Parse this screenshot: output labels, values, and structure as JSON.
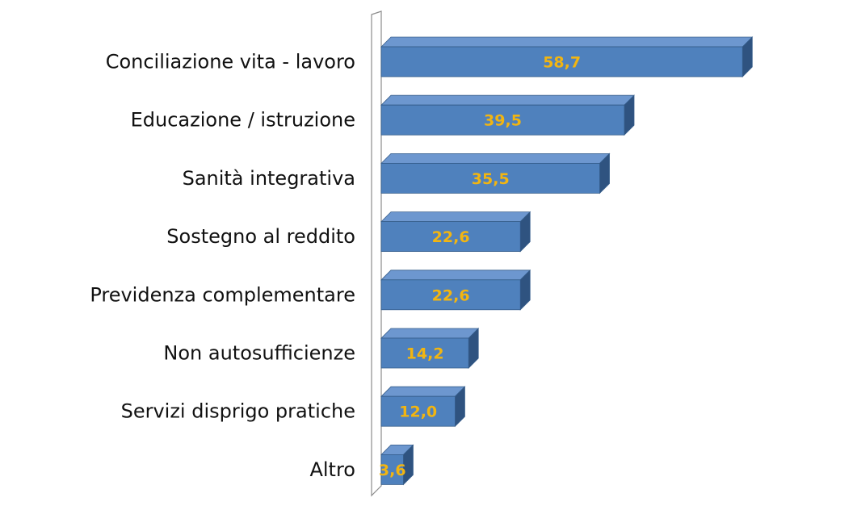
{
  "chart_data": {
    "type": "bar",
    "orientation": "horizontal",
    "style": "3d",
    "categories": [
      "Conciliazione vita - lavoro",
      "Educazione / istruzione",
      "Sanità integrativa",
      "Sostegno al reddito",
      "Previdenza complementare",
      "Non autosufficienze",
      "Servizi disprigo pratiche",
      "Altro"
    ],
    "values": [
      58.7,
      39.5,
      35.5,
      22.6,
      22.6,
      14.2,
      12.0,
      3.6
    ],
    "value_labels": [
      "58,7",
      "39,5",
      "35,5",
      "22,6",
      "22,6",
      "14,2",
      "12,0",
      "3,6"
    ],
    "xlim": [
      0,
      60
    ],
    "grid": false,
    "legend": "none",
    "colors": {
      "bar_front": "#4f81bd",
      "bar_top": "#6d97cf",
      "bar_side": "#2f5380",
      "bar_edge": "#345c8a",
      "value_text": "#f2b511",
      "axis_wall": "#8c8c8c"
    }
  }
}
